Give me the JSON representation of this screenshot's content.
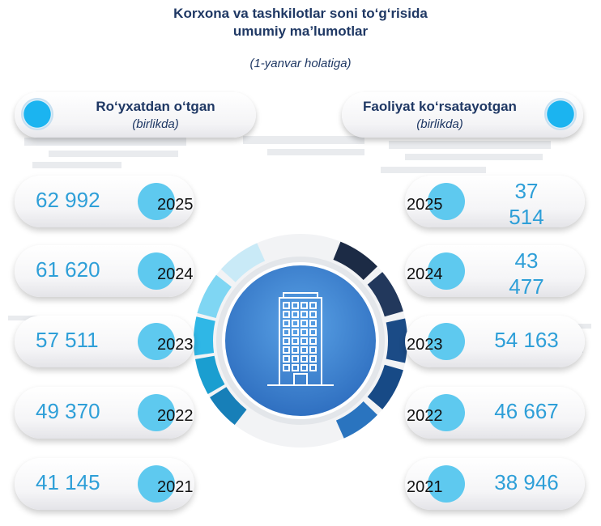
{
  "title_line1": "Korxona va tashkilotlar soni to‘g‘risida",
  "title_line2": "umumiy ma’lumotlar",
  "subtitle": "(1-yanvar holatiga)",
  "left_header": {
    "title": "Ro‘yxatdan o‘tgan",
    "sub": "(birlikda)"
  },
  "right_header": {
    "title": "Faoliyat ko‘rsatayotgan",
    "sub": "(birlikda)"
  },
  "rows": [
    {
      "year": "2025",
      "left": "62 992",
      "right_line1": "37",
      "right_line2": "514"
    },
    {
      "year": "2024",
      "left": "61 620",
      "right_line1": "43",
      "right_line2": "477"
    },
    {
      "year": "2023",
      "left": "57 511",
      "right_line1": "54 163",
      "right_line2": ""
    },
    {
      "year": "2022",
      "left": "49 370",
      "right_line1": "46 667",
      "right_line2": ""
    },
    {
      "year": "2021",
      "left": "41 145",
      "right_line1": "38 946",
      "right_line2": ""
    }
  ],
  "chart_data": {
    "type": "table",
    "title": "Korxona va tashkilotlar soni to‘g‘risida umumiy ma’lumotlar",
    "subtitle": "(1-yanvar holatiga)",
    "categories": [
      "2025",
      "2024",
      "2023",
      "2022",
      "2021"
    ],
    "series": [
      {
        "name": "Ro‘yxatdan o‘tgan",
        "values": [
          62992,
          61620,
          57511,
          49370,
          41145
        ]
      },
      {
        "name": "Faoliyat ko‘rsatayotgan",
        "values": [
          37514,
          43477,
          54163,
          46667,
          38946
        ]
      }
    ],
    "unit": "(birlikda)"
  },
  "colors": {
    "title": "#1f3864",
    "value": "#2e9fd8",
    "year_circle": "#5ec9ef",
    "hub": "#3f86d4"
  },
  "icons": {
    "center": "building-icon",
    "header_dot": "blue-dot-icon"
  }
}
